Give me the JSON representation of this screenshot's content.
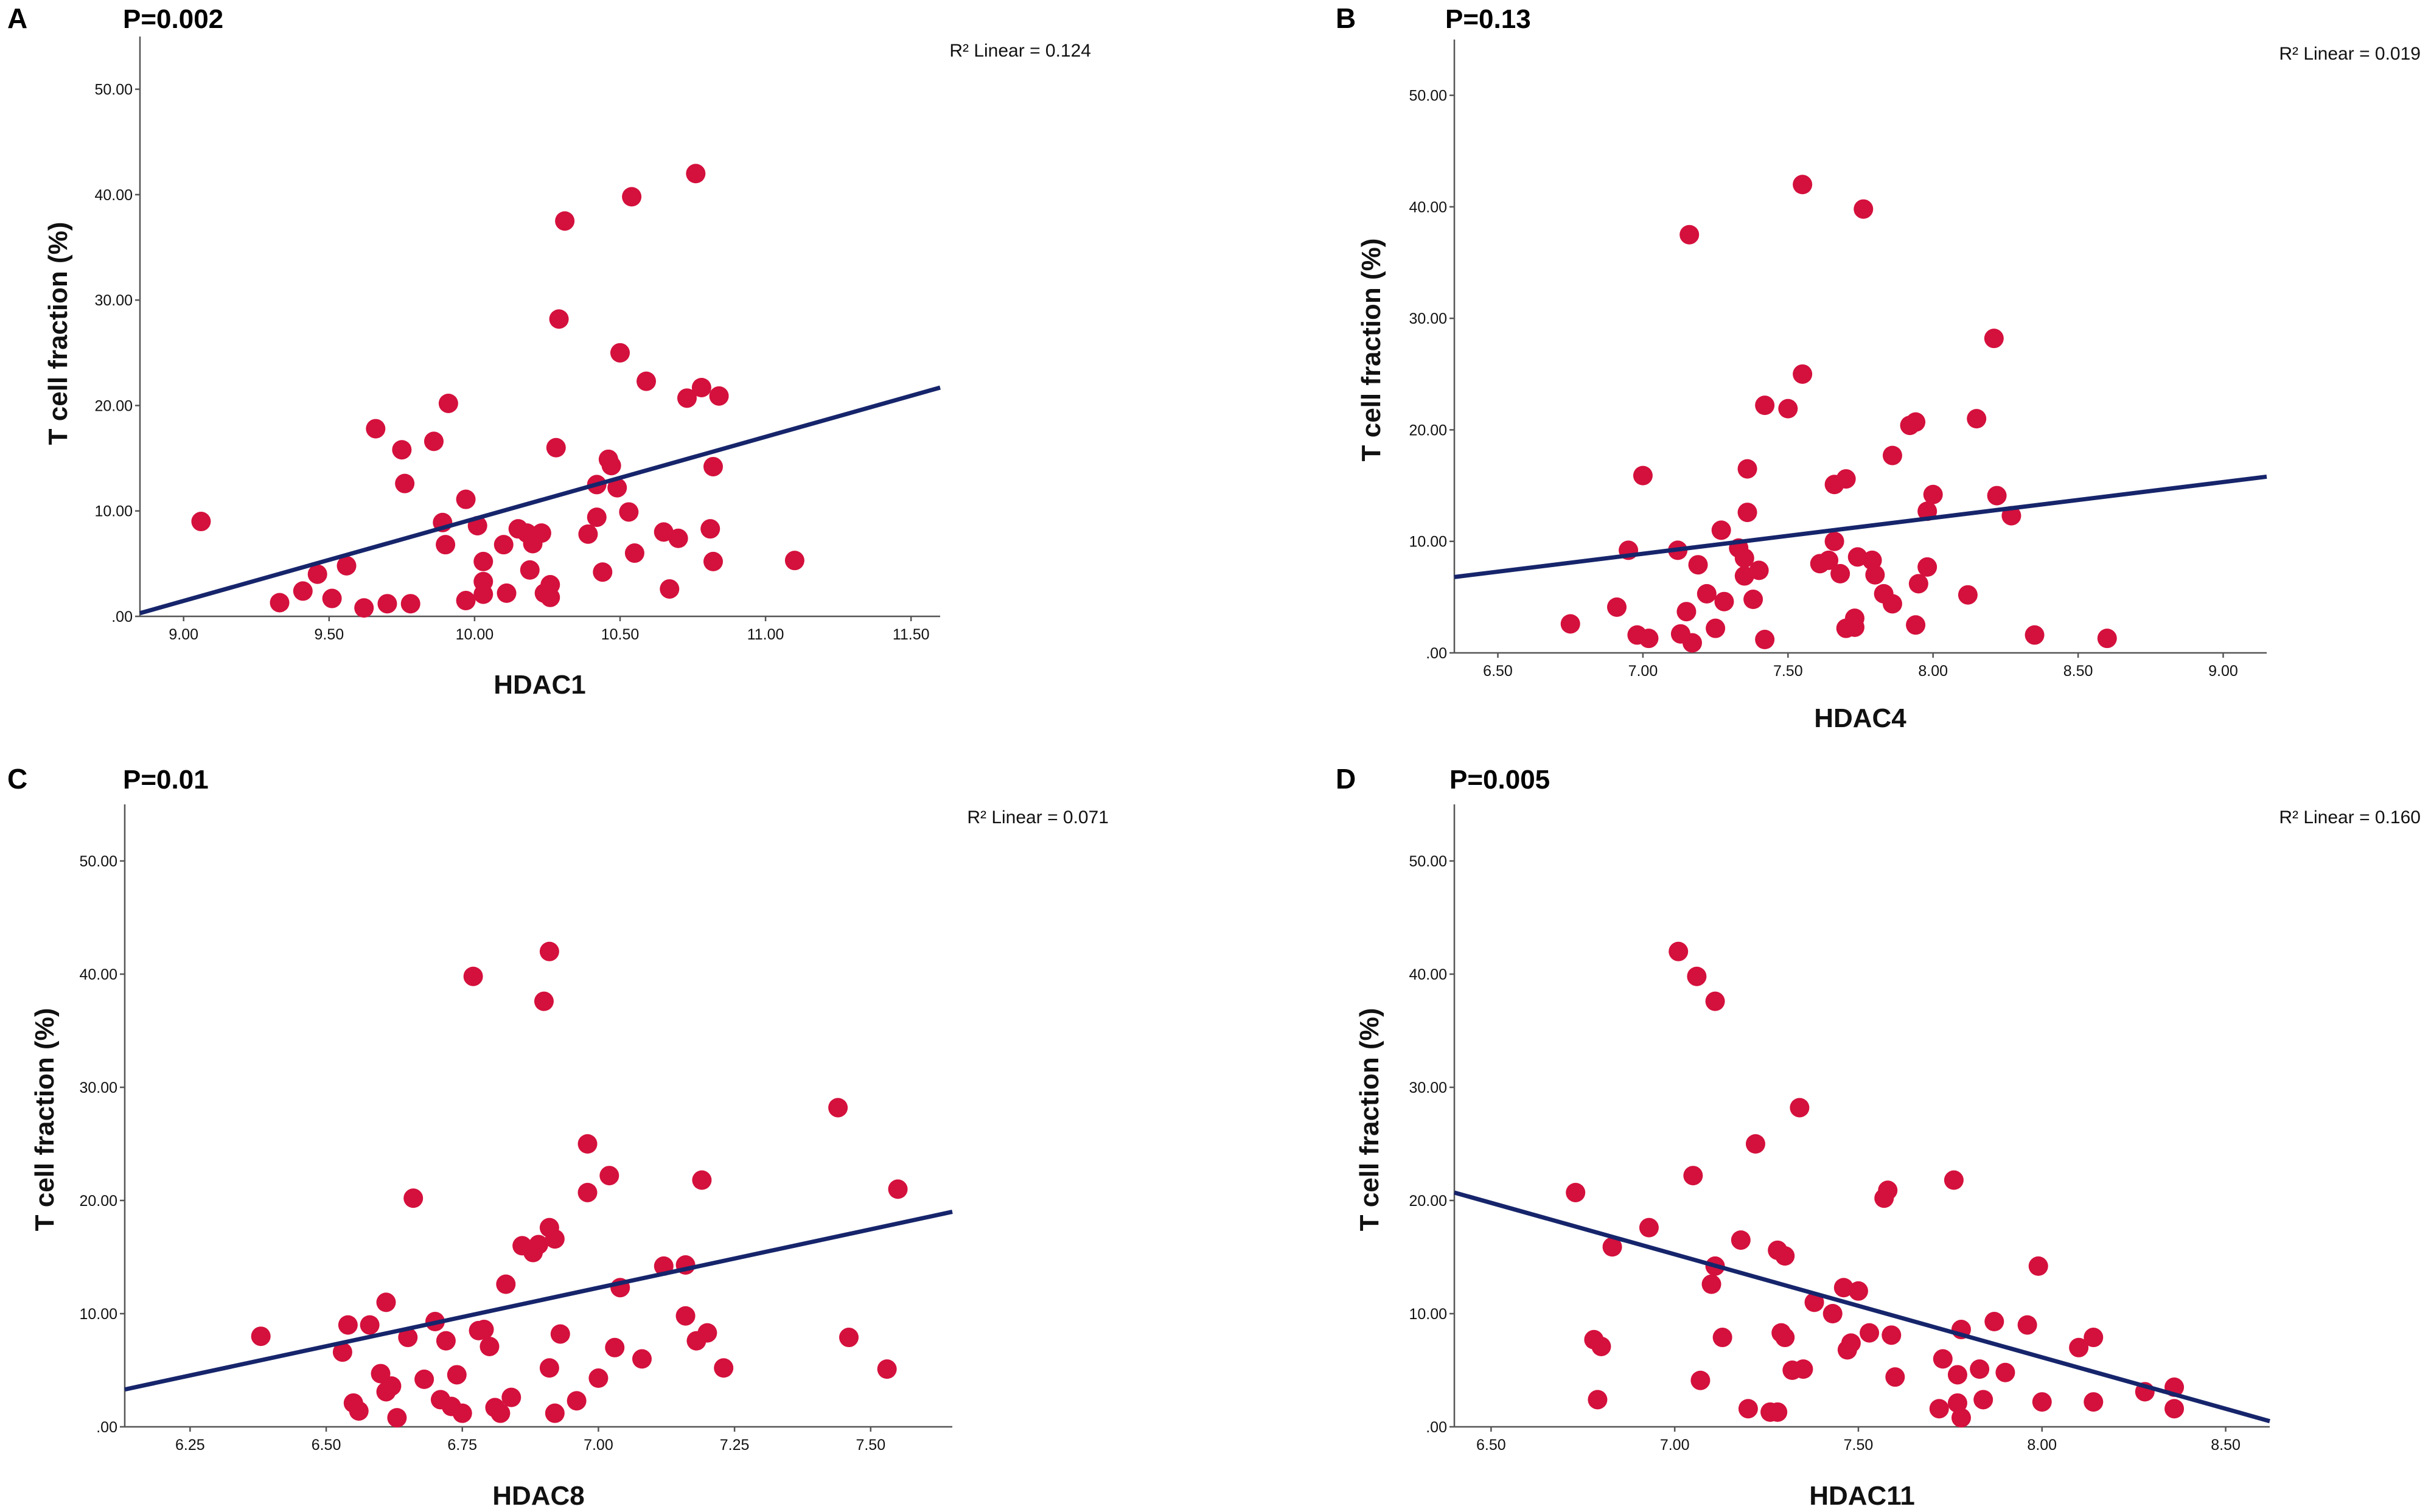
{
  "colors": {
    "point": "#d4103c",
    "regression": "#16256b",
    "axis": "#555555",
    "text": "#111111"
  },
  "chart_data": [
    {
      "id": "A",
      "type": "scatter",
      "panel_label": "A",
      "p_value_text": "P=0.002",
      "r2_text": "R² Linear = 0.124",
      "xlabel": "HDAC1",
      "ylabel": "T cell fraction (%)",
      "xlim": [
        8.85,
        11.6
      ],
      "ylim": [
        0,
        55
      ],
      "x_ticks": [
        9.0,
        9.5,
        10.0,
        10.5,
        11.0,
        11.5
      ],
      "x_tick_labels": [
        "9.00",
        "9.50",
        "10.00",
        "10.50",
        "11.00",
        "11.50"
      ],
      "y_ticks": [
        0,
        10,
        20,
        30,
        40,
        50
      ],
      "y_tick_labels": [
        ".00",
        "10.00",
        "20.00",
        "30.00",
        "40.00",
        "50.00"
      ],
      "regression": {
        "x": [
          8.85,
          11.6
        ],
        "y": [
          0.3,
          21.7
        ]
      },
      "points": [
        [
          9.06,
          9.0
        ],
        [
          9.33,
          1.3
        ],
        [
          9.41,
          2.4
        ],
        [
          9.46,
          4.0
        ],
        [
          9.51,
          1.7
        ],
        [
          9.56,
          4.8
        ],
        [
          9.62,
          0.8
        ],
        [
          9.66,
          17.8
        ],
        [
          9.7,
          1.2
        ],
        [
          9.75,
          15.8
        ],
        [
          9.76,
          12.6
        ],
        [
          9.78,
          1.2
        ],
        [
          9.86,
          16.6
        ],
        [
          9.89,
          8.9
        ],
        [
          9.9,
          6.8
        ],
        [
          9.91,
          20.2
        ],
        [
          9.97,
          11.1
        ],
        [
          9.97,
          1.5
        ],
        [
          10.01,
          8.6
        ],
        [
          10.03,
          5.2
        ],
        [
          10.03,
          3.3
        ],
        [
          10.03,
          2.1
        ],
        [
          10.1,
          6.8
        ],
        [
          10.11,
          2.2
        ],
        [
          10.15,
          8.3
        ],
        [
          10.18,
          7.9
        ],
        [
          10.19,
          4.4
        ],
        [
          10.2,
          6.9
        ],
        [
          10.23,
          7.9
        ],
        [
          10.24,
          2.2
        ],
        [
          10.26,
          3.0
        ],
        [
          10.26,
          1.8
        ],
        [
          10.28,
          16.0
        ],
        [
          10.29,
          28.2
        ],
        [
          10.31,
          37.5
        ],
        [
          10.39,
          7.8
        ],
        [
          10.42,
          9.4
        ],
        [
          10.42,
          12.5
        ],
        [
          10.44,
          4.2
        ],
        [
          10.46,
          14.9
        ],
        [
          10.47,
          14.3
        ],
        [
          10.49,
          12.2
        ],
        [
          10.5,
          25.0
        ],
        [
          10.53,
          9.9
        ],
        [
          10.54,
          39.8
        ],
        [
          10.55,
          6.0
        ],
        [
          10.59,
          22.3
        ],
        [
          10.65,
          8.0
        ],
        [
          10.67,
          2.6
        ],
        [
          10.7,
          7.4
        ],
        [
          10.73,
          20.7
        ],
        [
          10.76,
          42.0
        ],
        [
          10.78,
          21.7
        ],
        [
          10.81,
          8.3
        ],
        [
          10.82,
          14.2
        ],
        [
          10.82,
          5.2
        ],
        [
          10.84,
          20.9
        ],
        [
          11.1,
          5.3
        ]
      ]
    },
    {
      "id": "B",
      "type": "scatter",
      "panel_label": "B",
      "p_value_text": "P=0.13",
      "r2_text": "R² Linear = 0.019",
      "xlabel": "HDAC4",
      "ylabel": "T cell fraction (%)",
      "xlim": [
        6.35,
        9.15
      ],
      "ylim": [
        0,
        55
      ],
      "x_ticks": [
        6.5,
        7.0,
        7.5,
        8.0,
        8.5,
        9.0
      ],
      "x_tick_labels": [
        "6.50",
        "7.00",
        "7.50",
        "8.00",
        "8.50",
        "9.00"
      ],
      "y_ticks": [
        0,
        10,
        20,
        30,
        40,
        50
      ],
      "y_tick_labels": [
        ".00",
        "10.00",
        "20.00",
        "30.00",
        "40.00",
        "50.00"
      ],
      "regression": {
        "x": [
          6.35,
          9.15
        ],
        "y": [
          6.8,
          15.8
        ]
      },
      "points": [
        [
          6.75,
          2.6
        ],
        [
          6.91,
          4.1
        ],
        [
          6.95,
          9.2
        ],
        [
          6.98,
          1.6
        ],
        [
          7.0,
          15.9
        ],
        [
          7.02,
          1.3
        ],
        [
          7.12,
          9.2
        ],
        [
          7.13,
          1.7
        ],
        [
          7.15,
          3.7
        ],
        [
          7.16,
          37.5
        ],
        [
          7.17,
          0.9
        ],
        [
          7.19,
          7.9
        ],
        [
          7.22,
          5.3
        ],
        [
          7.25,
          2.2
        ],
        [
          7.27,
          11.0
        ],
        [
          7.28,
          4.6
        ],
        [
          7.33,
          9.4
        ],
        [
          7.35,
          8.5
        ],
        [
          7.35,
          6.9
        ],
        [
          7.36,
          12.6
        ],
        [
          7.36,
          16.5
        ],
        [
          7.38,
          4.8
        ],
        [
          7.4,
          7.4
        ],
        [
          7.42,
          1.2
        ],
        [
          7.42,
          22.2
        ],
        [
          7.5,
          21.9
        ],
        [
          7.55,
          25.0
        ],
        [
          7.55,
          42.0
        ],
        [
          7.61,
          8.0
        ],
        [
          7.64,
          8.3
        ],
        [
          7.66,
          15.1
        ],
        [
          7.66,
          10.0
        ],
        [
          7.68,
          7.1
        ],
        [
          7.7,
          15.6
        ],
        [
          7.7,
          2.2
        ],
        [
          7.73,
          3.1
        ],
        [
          7.73,
          2.3
        ],
        [
          7.74,
          8.6
        ],
        [
          7.76,
          39.8
        ],
        [
          7.79,
          8.3
        ],
        [
          7.8,
          7.0
        ],
        [
          7.83,
          5.3
        ],
        [
          7.86,
          4.4
        ],
        [
          7.86,
          17.7
        ],
        [
          7.92,
          20.4
        ],
        [
          7.94,
          20.7
        ],
        [
          7.94,
          2.5
        ],
        [
          7.95,
          6.2
        ],
        [
          7.98,
          7.7
        ],
        [
          7.98,
          12.7
        ],
        [
          8.0,
          14.2
        ],
        [
          8.12,
          5.2
        ],
        [
          8.15,
          21.0
        ],
        [
          8.21,
          28.2
        ],
        [
          8.22,
          14.1
        ],
        [
          8.27,
          12.3
        ],
        [
          8.35,
          1.6
        ],
        [
          8.6,
          1.3
        ]
      ]
    },
    {
      "id": "C",
      "type": "scatter",
      "panel_label": "C",
      "p_value_text": "P=0.01",
      "r2_text": "R² Linear = 0.071",
      "xlabel": "HDAC8",
      "ylabel": "T cell fraction (%)",
      "xlim": [
        6.13,
        7.65
      ],
      "ylim": [
        0,
        55
      ],
      "x_ticks": [
        6.25,
        6.5,
        6.75,
        7.0,
        7.25,
        7.5
      ],
      "x_tick_labels": [
        "6.25",
        "6.50",
        "6.75",
        "7.00",
        "7.25",
        "7.50"
      ],
      "y_ticks": [
        0,
        10,
        20,
        30,
        40,
        50
      ],
      "y_tick_labels": [
        ".00",
        "10.00",
        "20.00",
        "30.00",
        "40.00",
        "50.00"
      ],
      "regression": {
        "x": [
          6.13,
          7.65
        ],
        "y": [
          3.3,
          19.0
        ]
      },
      "points": [
        [
          6.38,
          8.0
        ],
        [
          6.53,
          6.6
        ],
        [
          6.54,
          9.0
        ],
        [
          6.55,
          2.1
        ],
        [
          6.56,
          1.4
        ],
        [
          6.58,
          9.0
        ],
        [
          6.6,
          4.7
        ],
        [
          6.61,
          11.0
        ],
        [
          6.61,
          3.1
        ],
        [
          6.62,
          3.6
        ],
        [
          6.63,
          0.8
        ],
        [
          6.65,
          7.9
        ],
        [
          6.66,
          20.2
        ],
        [
          6.68,
          4.2
        ],
        [
          6.7,
          9.3
        ],
        [
          6.71,
          2.4
        ],
        [
          6.72,
          7.6
        ],
        [
          6.73,
          1.8
        ],
        [
          6.74,
          4.6
        ],
        [
          6.75,
          1.2
        ],
        [
          6.77,
          39.8
        ],
        [
          6.78,
          8.5
        ],
        [
          6.79,
          8.6
        ],
        [
          6.8,
          7.1
        ],
        [
          6.81,
          1.7
        ],
        [
          6.82,
          1.2
        ],
        [
          6.83,
          12.6
        ],
        [
          6.84,
          2.6
        ],
        [
          6.86,
          16.0
        ],
        [
          6.88,
          15.4
        ],
        [
          6.89,
          16.1
        ],
        [
          6.9,
          37.6
        ],
        [
          6.91,
          5.2
        ],
        [
          6.91,
          17.6
        ],
        [
          6.91,
          42.0
        ],
        [
          6.92,
          16.6
        ],
        [
          6.92,
          1.2
        ],
        [
          6.93,
          8.2
        ],
        [
          6.96,
          2.3
        ],
        [
          6.98,
          25.0
        ],
        [
          6.98,
          20.7
        ],
        [
          7.0,
          4.3
        ],
        [
          7.02,
          22.2
        ],
        [
          7.03,
          7.0
        ],
        [
          7.04,
          12.3
        ],
        [
          7.08,
          6.0
        ],
        [
          7.12,
          14.2
        ],
        [
          7.16,
          14.3
        ],
        [
          7.16,
          9.8
        ],
        [
          7.18,
          7.6
        ],
        [
          7.19,
          21.8
        ],
        [
          7.2,
          8.3
        ],
        [
          7.23,
          5.2
        ],
        [
          7.44,
          28.2
        ],
        [
          7.46,
          7.9
        ],
        [
          7.53,
          5.1
        ],
        [
          7.55,
          21.0
        ]
      ]
    },
    {
      "id": "D",
      "type": "scatter",
      "panel_label": "D",
      "p_value_text": "P=0.005",
      "r2_text": "R² Linear = 0.160",
      "xlabel": "HDAC11",
      "ylabel": "T cell fraction (%)",
      "xlim": [
        6.4,
        8.62
      ],
      "ylim": [
        0,
        55
      ],
      "x_ticks": [
        6.5,
        7.0,
        7.5,
        8.0,
        8.5
      ],
      "x_tick_labels": [
        "6.50",
        "7.00",
        "7.50",
        "8.00",
        "8.50"
      ],
      "y_ticks": [
        0,
        10,
        20,
        30,
        40,
        50
      ],
      "y_tick_labels": [
        ".00",
        "10.00",
        "20.00",
        "30.00",
        "40.00",
        "50.00"
      ],
      "regression": {
        "x": [
          6.4,
          8.62
        ],
        "y": [
          20.7,
          0.5
        ]
      },
      "points": [
        [
          6.73,
          20.7
        ],
        [
          6.78,
          7.7
        ],
        [
          6.79,
          2.4
        ],
        [
          6.8,
          7.1
        ],
        [
          6.83,
          15.9
        ],
        [
          6.93,
          17.6
        ],
        [
          7.01,
          42.0
        ],
        [
          7.05,
          22.2
        ],
        [
          7.06,
          39.8
        ],
        [
          7.07,
          4.1
        ],
        [
          7.1,
          12.6
        ],
        [
          7.11,
          37.6
        ],
        [
          7.11,
          14.2
        ],
        [
          7.13,
          7.9
        ],
        [
          7.18,
          16.5
        ],
        [
          7.2,
          1.6
        ],
        [
          7.22,
          25.0
        ],
        [
          7.26,
          1.3
        ],
        [
          7.28,
          1.3
        ],
        [
          7.28,
          15.6
        ],
        [
          7.29,
          8.3
        ],
        [
          7.3,
          15.1
        ],
        [
          7.3,
          7.9
        ],
        [
          7.32,
          5.0
        ],
        [
          7.34,
          28.2
        ],
        [
          7.35,
          5.1
        ],
        [
          7.38,
          11.0
        ],
        [
          7.43,
          10.0
        ],
        [
          7.46,
          12.3
        ],
        [
          7.47,
          6.8
        ],
        [
          7.48,
          7.4
        ],
        [
          7.5,
          12.0
        ],
        [
          7.53,
          8.3
        ],
        [
          7.57,
          20.2
        ],
        [
          7.58,
          20.9
        ],
        [
          7.59,
          8.1
        ],
        [
          7.6,
          4.4
        ],
        [
          7.72,
          1.6
        ],
        [
          7.73,
          6.0
        ],
        [
          7.76,
          21.8
        ],
        [
          7.77,
          2.1
        ],
        [
          7.77,
          4.6
        ],
        [
          7.78,
          8.6
        ],
        [
          7.78,
          0.8
        ],
        [
          7.83,
          5.1
        ],
        [
          7.84,
          2.4
        ],
        [
          7.87,
          9.3
        ],
        [
          7.9,
          4.8
        ],
        [
          7.96,
          9.0
        ],
        [
          7.99,
          14.2
        ],
        [
          8.0,
          2.2
        ],
        [
          8.1,
          7.0
        ],
        [
          8.14,
          7.9
        ],
        [
          8.14,
          2.2
        ],
        [
          8.28,
          3.1
        ],
        [
          8.36,
          3.5
        ],
        [
          8.36,
          1.6
        ]
      ]
    }
  ]
}
